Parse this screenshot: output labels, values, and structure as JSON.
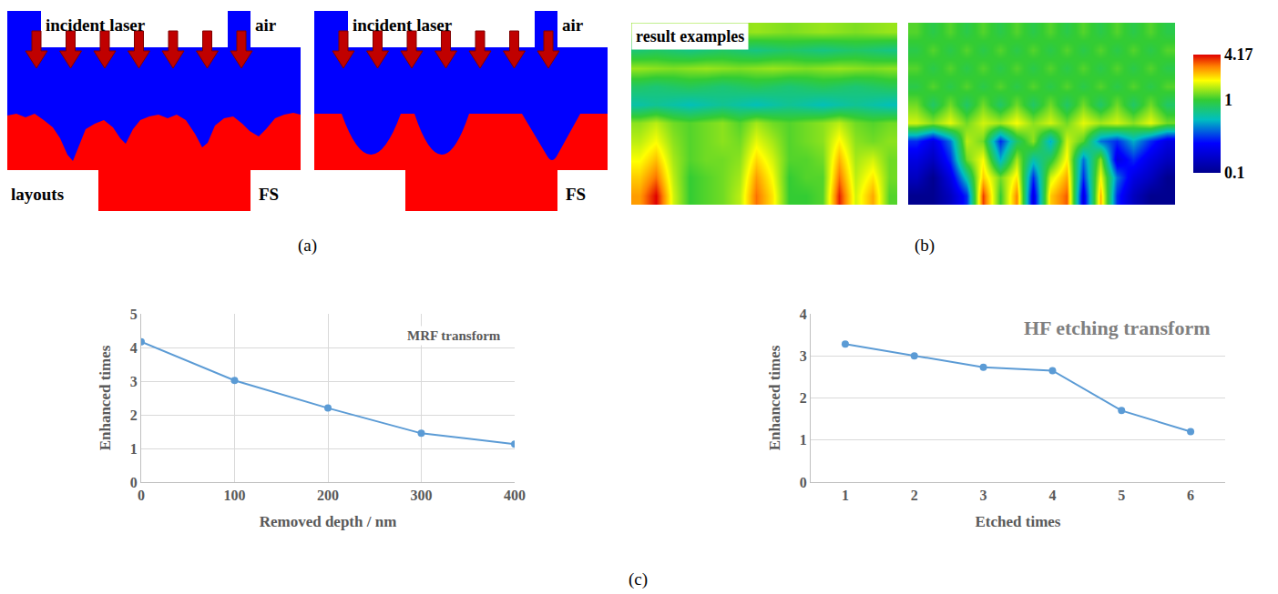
{
  "panel_labels": [
    "(a)",
    "(b)",
    "(c)"
  ],
  "layouts": [
    {
      "laser": "incident laser",
      "medium": "air",
      "caption": "layouts",
      "substrate": "FS"
    },
    {
      "laser": "incident laser",
      "medium": "air",
      "substrate": "FS"
    }
  ],
  "chart_data": [
    {
      "type": "heatmap",
      "label": "result examples",
      "tick_labels": false,
      "cells": [
        [
          1.3,
          1.25,
          1.3,
          1.35,
          1.3,
          1.25,
          1.3,
          1.35,
          1.3,
          1.25,
          1.3,
          1.35,
          1.3,
          1.25,
          1.3,
          1.35
        ],
        [
          0.75,
          0.8,
          0.75,
          0.7,
          0.75,
          0.8,
          0.75,
          0.7,
          0.75,
          0.8,
          0.75,
          0.7,
          0.75,
          0.8,
          0.75,
          0.7
        ],
        [
          1.35,
          1.3,
          1.25,
          1.3,
          1.35,
          1.3,
          1.25,
          1.3,
          1.35,
          1.3,
          1.25,
          1.3,
          1.35,
          1.3,
          1.25,
          1.3
        ],
        [
          0.8,
          0.75,
          0.8,
          0.85,
          0.8,
          0.75,
          0.8,
          0.85,
          0.8,
          0.75,
          0.8,
          0.85,
          0.8,
          0.75,
          0.8,
          0.85
        ],
        [
          0.6,
          0.65,
          0.6,
          0.55,
          0.6,
          0.65,
          0.6,
          0.55,
          0.6,
          0.65,
          0.6,
          0.55,
          0.6,
          0.65,
          0.6,
          0.55
        ],
        [
          1.3,
          1.5,
          1.2,
          1.1,
          1.2,
          1.3,
          1.1,
          1.4,
          1.2,
          1.1,
          1.2,
          1.3,
          1.5,
          1.2,
          1.1,
          1.2
        ],
        [
          1.5,
          1.8,
          1.3,
          1.1,
          1.2,
          1.3,
          1.2,
          1.7,
          1.4,
          1.1,
          1.2,
          1.3,
          1.9,
          1.3,
          1.2,
          1.3
        ],
        [
          1.8,
          2.3,
          1.4,
          1.1,
          1.2,
          1.2,
          1.3,
          2.1,
          1.6,
          1.1,
          1.1,
          1.2,
          2.4,
          1.4,
          1.6,
          1.2
        ],
        [
          2.2,
          3.0,
          1.5,
          1.0,
          1.1,
          1.2,
          1.4,
          2.6,
          1.8,
          1.0,
          1.1,
          1.1,
          3.0,
          1.5,
          2.0,
          1.2
        ],
        [
          2.6,
          4.17,
          1.6,
          1.0,
          1.1,
          1.2,
          1.5,
          3.0,
          2.0,
          1.0,
          1.0,
          1.1,
          3.8,
          1.6,
          2.5,
          1.1
        ]
      ]
    },
    {
      "type": "heatmap",
      "tick_labels": false,
      "cells": [
        [
          1.1,
          0.9,
          1.1,
          0.9,
          1.1,
          0.9,
          1.1,
          0.9,
          1.1,
          0.9,
          1.1,
          0.9,
          1.1,
          0.9,
          1.1,
          0.9
        ],
        [
          0.9,
          1.1,
          0.9,
          1.1,
          0.9,
          1.1,
          0.9,
          1.1,
          0.9,
          1.1,
          0.9,
          1.1,
          0.9,
          1.1,
          0.9,
          1.1
        ],
        [
          1.1,
          0.9,
          1.1,
          0.9,
          1.1,
          0.9,
          1.1,
          0.9,
          1.1,
          0.9,
          1.1,
          0.9,
          1.1,
          0.9,
          1.1,
          0.9
        ],
        [
          0.9,
          1.1,
          0.9,
          1.1,
          0.9,
          1.1,
          0.9,
          1.1,
          0.9,
          1.1,
          0.9,
          1.1,
          0.9,
          1.1,
          0.9,
          1.1
        ],
        [
          1.2,
          0.8,
          1.2,
          0.8,
          1.2,
          0.8,
          1.2,
          0.8,
          1.2,
          0.8,
          1.2,
          0.8,
          1.2,
          0.8,
          1.2,
          0.8
        ],
        [
          1.6,
          1.3,
          1.7,
          1.2,
          1.6,
          1.4,
          1.8,
          1.3,
          1.6,
          1.2,
          1.7,
          1.4,
          1.6,
          1.3,
          1.7,
          1.2
        ],
        [
          0.3,
          0.2,
          0.4,
          1.5,
          1.2,
          0.3,
          0.8,
          1.3,
          0.5,
          1.6,
          1.1,
          0.4,
          0.3,
          0.5,
          0.3,
          0.2
        ],
        [
          0.2,
          0.15,
          0.3,
          1.2,
          1.8,
          0.5,
          1.4,
          0.6,
          0.9,
          1.9,
          0.4,
          1.3,
          0.2,
          0.3,
          0.2,
          0.15
        ],
        [
          0.15,
          0.1,
          0.2,
          0.6,
          2.2,
          1.2,
          2.0,
          0.3,
          1.6,
          2.5,
          0.3,
          1.8,
          0.4,
          0.2,
          0.15,
          0.1
        ],
        [
          0.1,
          0.1,
          0.15,
          0.3,
          3.5,
          1.0,
          2.8,
          0.2,
          2.2,
          3.2,
          0.2,
          2.4,
          0.3,
          0.15,
          0.1,
          0.1
        ]
      ],
      "colorbar": {
        "range": [
          0.1,
          4.17
        ],
        "ticks": [
          0.1,
          1,
          4.17
        ],
        "log": true
      }
    },
    {
      "type": "line",
      "title": "MRF transform",
      "xlabel": "Removed depth / nm",
      "ylabel": "Enhanced times",
      "x": [
        0,
        100,
        200,
        300,
        400
      ],
      "values": [
        4.17,
        3.02,
        2.2,
        1.45,
        1.13
      ],
      "color": "#5b9bd5",
      "marker": "circle",
      "xlim": [
        0,
        400
      ],
      "xticks": [
        0,
        100,
        200,
        300,
        400
      ],
      "ylim": [
        0,
        5
      ],
      "yticks": [
        0,
        1,
        2,
        3,
        4,
        5
      ],
      "grid": true
    },
    {
      "type": "line",
      "title": "HF etching transform",
      "xlabel": "Etched times",
      "ylabel": "Enhanced times",
      "x": [
        1,
        2,
        3,
        4,
        5,
        6
      ],
      "values": [
        3.28,
        3.0,
        2.73,
        2.65,
        1.7,
        1.2
      ],
      "color": "#5b9bd5",
      "marker": "circle",
      "xlim": [
        0.5,
        6.5
      ],
      "xticks": [
        1,
        2,
        3,
        4,
        5,
        6
      ],
      "ylim": [
        0,
        4
      ],
      "yticks": [
        0,
        1,
        2,
        3,
        4
      ],
      "grid": "y"
    }
  ]
}
